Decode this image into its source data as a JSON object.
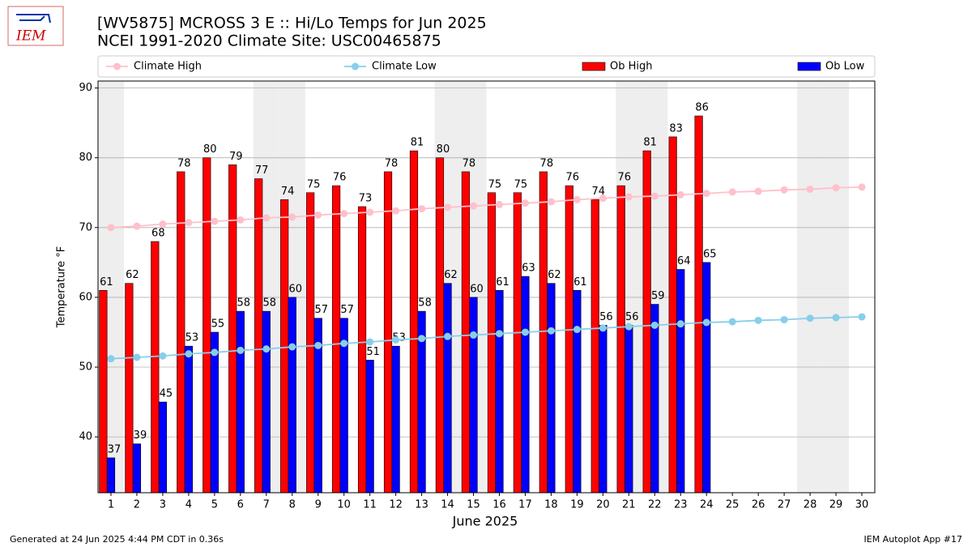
{
  "chart_data": {
    "type": "bar",
    "logo": "IEM",
    "title": "[WV5875] MCROSS 3 E :: Hi/Lo Temps for Jun 2025",
    "subtitle": "NCEI 1991-2020 Climate Site: USC00465875",
    "xlabel": "June 2025",
    "ylabel": "Temperature °F",
    "footer_left": "Generated at 24 Jun 2025 4:44 PM CDT in 0.36s",
    "footer_right": "IEM Autoplot App #17",
    "x": [
      1,
      2,
      3,
      4,
      5,
      6,
      7,
      8,
      9,
      10,
      11,
      12,
      13,
      14,
      15,
      16,
      17,
      18,
      19,
      20,
      21,
      22,
      23,
      24,
      25,
      26,
      27,
      28,
      29,
      30
    ],
    "xticks": [
      1,
      2,
      3,
      4,
      5,
      6,
      7,
      8,
      9,
      10,
      11,
      12,
      13,
      14,
      15,
      16,
      17,
      18,
      19,
      20,
      21,
      22,
      23,
      24,
      25,
      26,
      27,
      28,
      29,
      30
    ],
    "xlim": [
      0.5,
      30.5
    ],
    "ylim": [
      32,
      91
    ],
    "yticks": [
      40,
      50,
      60,
      70,
      80,
      90
    ],
    "grid": true,
    "weekend_days": [
      1,
      7,
      8,
      14,
      15,
      21,
      22,
      28,
      29
    ],
    "series": [
      {
        "name": "Climate High",
        "kind": "line",
        "color": "#ffc0cb",
        "values": [
          70.0,
          70.2,
          70.5,
          70.7,
          70.9,
          71.1,
          71.4,
          71.5,
          71.8,
          72.0,
          72.2,
          72.4,
          72.7,
          72.9,
          73.1,
          73.3,
          73.5,
          73.7,
          74.0,
          74.2,
          74.4,
          74.5,
          74.7,
          74.9,
          75.1,
          75.2,
          75.4,
          75.5,
          75.7,
          75.8
        ]
      },
      {
        "name": "Climate Low",
        "kind": "line",
        "color": "#87ceeb",
        "values": [
          51.2,
          51.4,
          51.6,
          51.9,
          52.1,
          52.4,
          52.6,
          52.9,
          53.1,
          53.4,
          53.6,
          53.9,
          54.1,
          54.4,
          54.6,
          54.8,
          55.0,
          55.2,
          55.4,
          55.6,
          55.8,
          56.0,
          56.2,
          56.4,
          56.5,
          56.7,
          56.8,
          57.0,
          57.1,
          57.2
        ]
      },
      {
        "name": "Ob High",
        "kind": "bar",
        "color": "#ff0000",
        "values": [
          61,
          62,
          68,
          78,
          80,
          79,
          77,
          74,
          75,
          76,
          73,
          78,
          81,
          80,
          78,
          75,
          75,
          78,
          76,
          74,
          76,
          81,
          83,
          86,
          null,
          null,
          null,
          null,
          null,
          null
        ]
      },
      {
        "name": "Ob Low",
        "kind": "bar",
        "color": "#0000ff",
        "values": [
          37,
          39,
          45,
          53,
          55,
          58,
          58,
          60,
          57,
          57,
          51,
          53,
          58,
          62,
          60,
          61,
          63,
          62,
          61,
          56,
          56,
          59,
          64,
          65,
          null,
          null,
          null,
          null,
          null,
          null
        ]
      }
    ]
  }
}
